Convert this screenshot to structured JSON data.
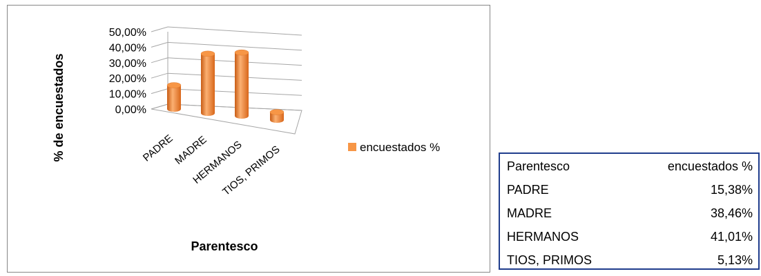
{
  "chart_data": {
    "type": "bar",
    "title": "",
    "xlabel": "Parentesco",
    "ylabel": "% de encuestados",
    "categories": [
      "PADRE",
      "MADRE",
      "HERMANOS",
      "TIOS, PRIMOS"
    ],
    "series": [
      {
        "name": "encuestados %",
        "values": [
          15.38,
          38.46,
          41.01,
          5.13
        ]
      }
    ],
    "ylim": [
      0,
      50
    ],
    "yticks": [
      "0,00%",
      "10,00%",
      "20,00%",
      "30,00%",
      "40,00%",
      "50,00%"
    ],
    "grid": true,
    "legend_position": "right",
    "bar_color": "#f79646",
    "bar_shape": "cylinder"
  },
  "table": {
    "headers": [
      "Parentesco",
      "encuestados %"
    ],
    "rows": [
      [
        "PADRE",
        "15,38%"
      ],
      [
        "MADRE",
        "38,46%"
      ],
      [
        "HERMANOS",
        "41,01%"
      ],
      [
        "TIOS, PRIMOS",
        "5,13%"
      ]
    ],
    "border_color": "#1f3c8c"
  }
}
